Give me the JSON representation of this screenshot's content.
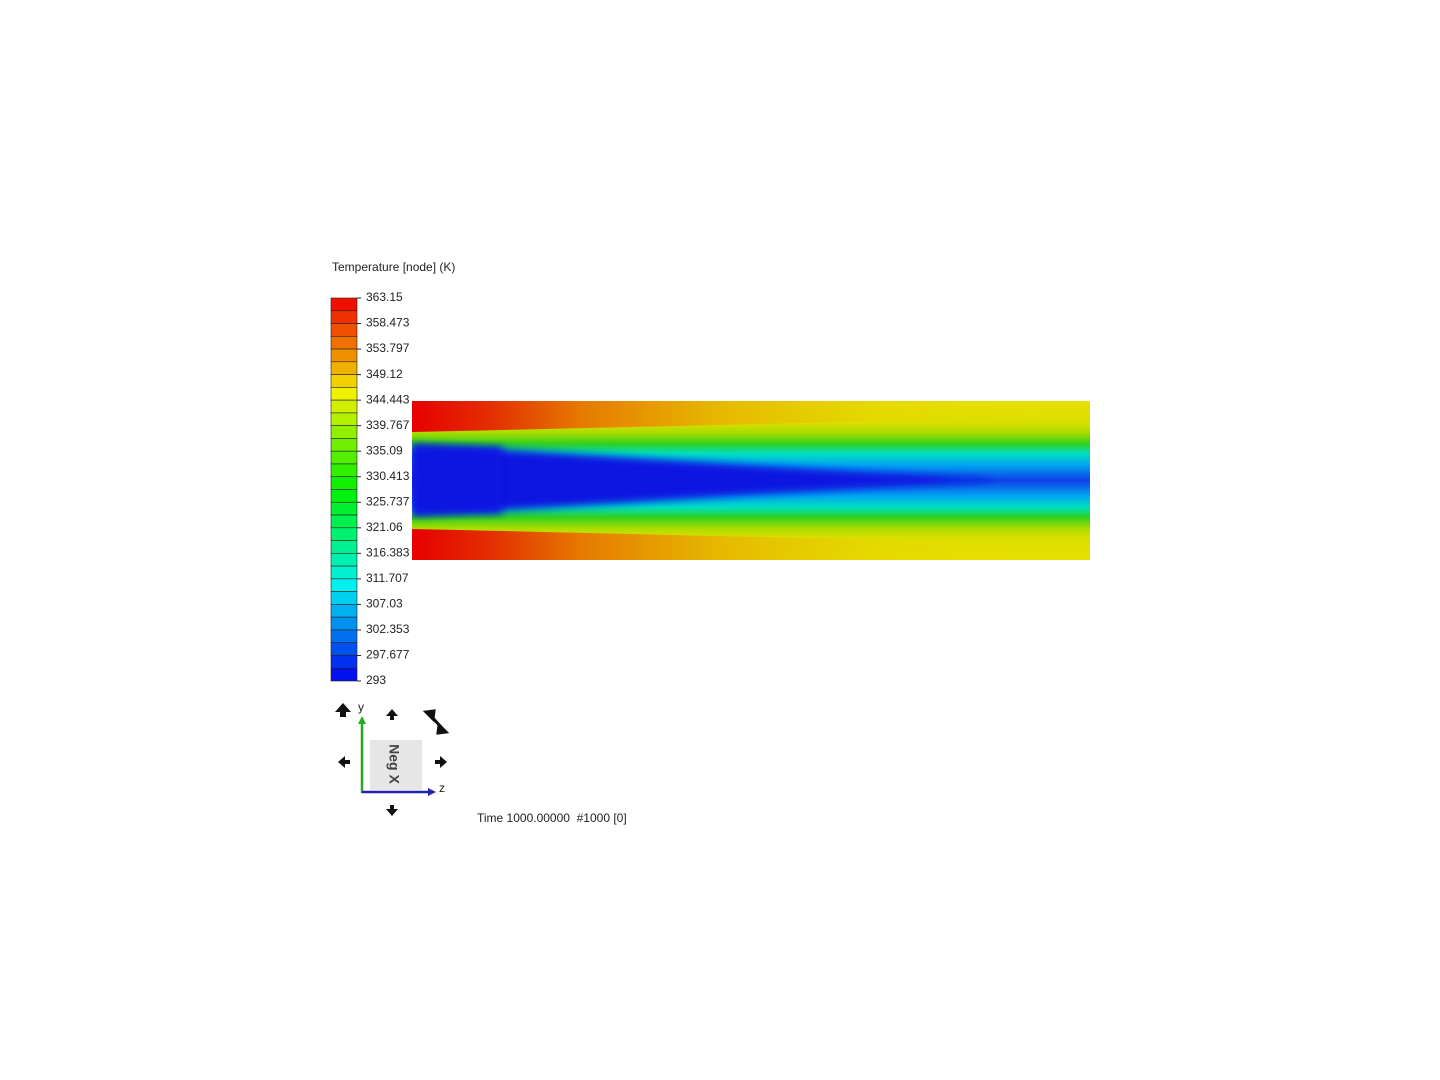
{
  "legend": {
    "title": "Temperature [node] (K)",
    "labels": [
      "363.15",
      "358.473",
      "353.797",
      "349.12",
      "344.443",
      "339.767",
      "335.09",
      "330.413",
      "325.737",
      "321.06",
      "316.383",
      "311.707",
      "307.03",
      "302.353",
      "297.677",
      "293"
    ]
  },
  "triad": {
    "y_label": "y",
    "z_label": "z",
    "view_label": "Neg X"
  },
  "time_label": "Time 1000.00000  #1000 [0]"
}
